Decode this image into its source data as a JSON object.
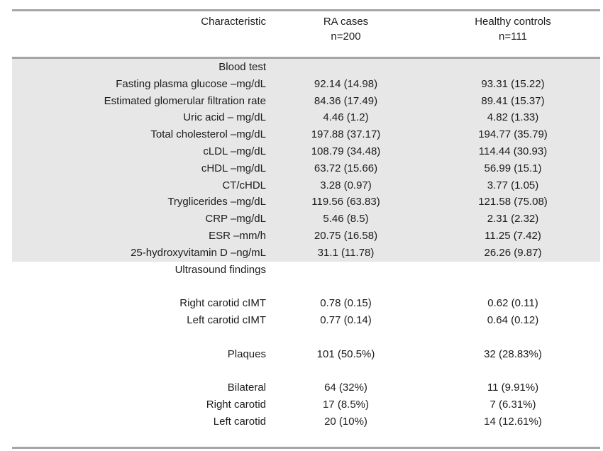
{
  "header": {
    "characteristic": "Characteristic",
    "ra_cases": {
      "line1": "RA cases",
      "line2": "n=200"
    },
    "healthy_controls": {
      "line1": "Healthy controls",
      "line2": "n=111"
    }
  },
  "rows": [
    {
      "label": "Blood test",
      "ra": "",
      "hc": "",
      "shaded": true,
      "section": true
    },
    {
      "label": "Fasting plasma glucose –mg/dL",
      "ra": "92.14 (14.98)",
      "hc": "93.31 (15.22)",
      "shaded": true
    },
    {
      "label": "Estimated glomerular filtration rate",
      "ra": "84.36 (17.49)",
      "hc": "89.41 (15.37)",
      "shaded": true
    },
    {
      "label": "Uric acid – mg/dL",
      "ra": "4.46 (1.2)",
      "hc": "4.82 (1.33)",
      "shaded": true
    },
    {
      "label": "Total cholesterol –mg/dL",
      "ra": "197.88 (37.17)",
      "hc": "194.77 (35.79)",
      "shaded": true
    },
    {
      "label": "cLDL –mg/dL",
      "ra": "108.79 (34.48)",
      "hc": "114.44 (30.93)",
      "shaded": true
    },
    {
      "label": "cHDL –mg/dL",
      "ra": "63.72 (15.66)",
      "hc": "56.99 (15.1)",
      "shaded": true
    },
    {
      "label": "CT/cHDL",
      "ra": "3.28 (0.97)",
      "hc": "3.77 (1.05)",
      "shaded": true
    },
    {
      "label": "Tryglicerides –mg/dL",
      "ra": "119.56 (63.83)",
      "hc": "121.58 (75.08)",
      "shaded": true
    },
    {
      "label": "CRP –mg/dL",
      "ra": "5.46 (8.5)",
      "hc": "2.31 (2.32)",
      "shaded": true
    },
    {
      "label": "ESR –mm/h",
      "ra": "20.75 (16.58)",
      "hc": "11.25 (7.42)",
      "shaded": true
    },
    {
      "label": "25-hydroxyvitamin D –ng/mL",
      "ra": "31.1 (11.78)",
      "hc": "26.26 (9.87)",
      "shaded": true
    },
    {
      "label": "Ultrasound findings",
      "ra": "",
      "hc": "",
      "shaded": false,
      "section": true
    },
    {
      "label": "",
      "ra": "",
      "hc": "",
      "shaded": false,
      "blank": true
    },
    {
      "label": "Right carotid cIMT",
      "ra": "0.78 (0.15)",
      "hc": "0.62 (0.11)",
      "shaded": false
    },
    {
      "label": "Left carotid cIMT",
      "ra": "0.77 (0.14)",
      "hc": "0.64 (0.12)",
      "shaded": false
    },
    {
      "label": "",
      "ra": "",
      "hc": "",
      "shaded": false,
      "blank": true
    },
    {
      "label": "Plaques",
      "ra": "101 (50.5%)",
      "hc": "32 (28.83%)",
      "shaded": false
    },
    {
      "label": "",
      "ra": "",
      "hc": "",
      "shaded": false,
      "blank": true
    },
    {
      "label": "Bilateral",
      "ra": "64 (32%)",
      "hc": "11 (9.91%)",
      "shaded": false
    },
    {
      "label": "Right carotid",
      "ra": "17 (8.5%)",
      "hc": "7 (6.31%)",
      "shaded": false
    },
    {
      "label": "Left carotid",
      "ra": "20 (10%)",
      "hc": "14 (12.61%)",
      "shaded": false
    },
    {
      "label": "",
      "ra": "",
      "hc": "",
      "shaded": false,
      "blank": true
    }
  ],
  "colors": {
    "shade": "#e8e7e7",
    "rule": "#a6a6a6",
    "text": "#1c1c1c",
    "background": "#ffffff"
  }
}
